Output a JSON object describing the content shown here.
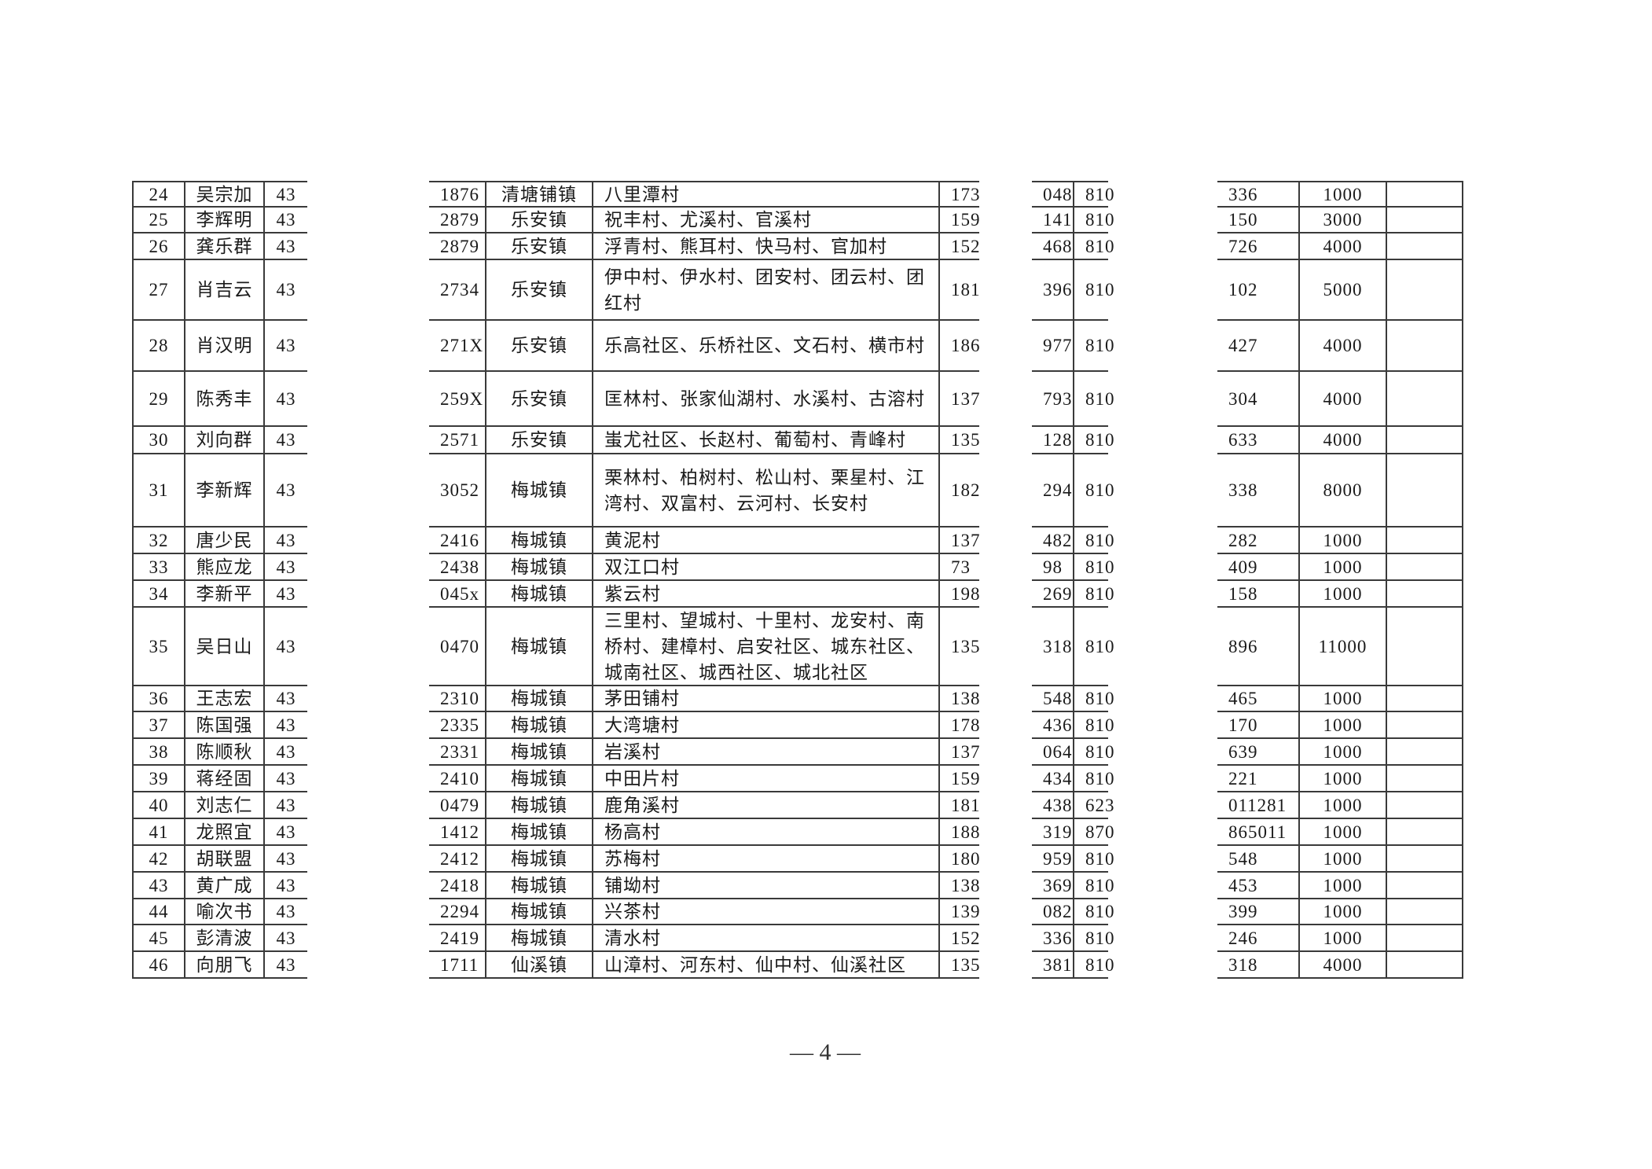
{
  "page_number": "— 4 —",
  "table": {
    "rows": [
      {
        "no": "24",
        "name": "吴宗加",
        "c3": "43",
        "id_tail": "1876",
        "town": "清塘铺镇",
        "villages": "八里潭村",
        "phone": "173",
        "c8": "048",
        "c9": "810",
        "c10": "336",
        "amount": "1000",
        "note": ""
      },
      {
        "no": "25",
        "name": "李辉明",
        "c3": "43",
        "id_tail": "2879",
        "town": "乐安镇",
        "villages": "祝丰村、尤溪村、官溪村",
        "phone": "159",
        "c8": "141",
        "c9": "810",
        "c10": "150",
        "amount": "3000",
        "note": ""
      },
      {
        "no": "26",
        "name": "龚乐群",
        "c3": "43",
        "id_tail": "2879",
        "town": "乐安镇",
        "villages": "浮青村、熊耳村、快马村、官加村",
        "phone": "152",
        "c8": "468",
        "c9": "810",
        "c10": "726",
        "amount": "4000",
        "note": ""
      },
      {
        "no": "27",
        "name": "肖吉云",
        "c3": "43",
        "id_tail": "2734",
        "town": "乐安镇",
        "villages": "伊中村、伊水村、团安村、团云村、团红村",
        "phone": "181",
        "c8": "396",
        "c9": "810",
        "c10": "102",
        "amount": "5000",
        "note": ""
      },
      {
        "no": "28",
        "name": "肖汉明",
        "c3": "43",
        "id_tail": "271X",
        "town": "乐安镇",
        "villages": "乐高社区、乐桥社区、文石村、横市村",
        "phone": "186",
        "c8": "977",
        "c9": "810",
        "c10": "427",
        "amount": "4000",
        "note": ""
      },
      {
        "no": "29",
        "name": "陈秀丰",
        "c3": "43",
        "id_tail": "259X",
        "town": "乐安镇",
        "villages": "匡林村、张家仙湖村、水溪村、古溶村",
        "phone": "137",
        "c8": "793",
        "c9": "810",
        "c10": "304",
        "amount": "4000",
        "note": ""
      },
      {
        "no": "30",
        "name": "刘向群",
        "c3": "43",
        "id_tail": "2571",
        "town": "乐安镇",
        "villages": "蚩尤社区、长赵村、葡萄村、青峰村",
        "phone": "135",
        "c8": "128",
        "c9": "810",
        "c10": "633",
        "amount": "4000",
        "note": ""
      },
      {
        "no": "31",
        "name": "李新辉",
        "c3": "43",
        "id_tail": "3052",
        "town": "梅城镇",
        "villages": "栗林村、柏树村、松山村、栗星村、江湾村、双富村、云河村、长安村",
        "phone": "182",
        "c8": "294",
        "c9": "810",
        "c10": "338",
        "amount": "8000",
        "note": ""
      },
      {
        "no": "32",
        "name": "唐少民",
        "c3": "43",
        "id_tail": "2416",
        "town": "梅城镇",
        "villages": "黄泥村",
        "phone": "137",
        "c8": "482",
        "c9": "810",
        "c10": "282",
        "amount": "1000",
        "note": ""
      },
      {
        "no": "33",
        "name": "熊应龙",
        "c3": "43",
        "id_tail": "2438",
        "town": "梅城镇",
        "villages": "双江口村",
        "phone": "73",
        "c8": "98",
        "c9": "810",
        "c10": "409",
        "amount": "1000",
        "note": ""
      },
      {
        "no": "34",
        "name": "李新平",
        "c3": "43",
        "id_tail": "045x",
        "town": "梅城镇",
        "villages": "紫云村",
        "phone": "198",
        "c8": "269",
        "c9": "810",
        "c10": "158",
        "amount": "1000",
        "note": ""
      },
      {
        "no": "35",
        "name": "吴日山",
        "c3": "43",
        "id_tail": "0470",
        "town": "梅城镇",
        "villages": "三里村、望城村、十里村、龙安村、南桥村、建樟村、启安社区、城东社区、城南社区、城西社区、城北社区",
        "phone": "135",
        "c8": "318",
        "c9": "810",
        "c10": "896",
        "amount": "11000",
        "note": ""
      },
      {
        "no": "36",
        "name": "王志宏",
        "c3": "43",
        "id_tail": "2310",
        "town": "梅城镇",
        "villages": "茅田铺村",
        "phone": "138",
        "c8": "548",
        "c9": "810",
        "c10": "465",
        "amount": "1000",
        "note": ""
      },
      {
        "no": "37",
        "name": "陈国强",
        "c3": "43",
        "id_tail": "2335",
        "town": "梅城镇",
        "villages": "大湾塘村",
        "phone": "178",
        "c8": "436",
        "c9": "810",
        "c10": "170",
        "amount": "1000",
        "note": ""
      },
      {
        "no": "38",
        "name": "陈顺秋",
        "c3": "43",
        "id_tail": "2331",
        "town": "梅城镇",
        "villages": "岩溪村",
        "phone": "137",
        "c8": "064",
        "c9": "810",
        "c10": "639",
        "amount": "1000",
        "note": ""
      },
      {
        "no": "39",
        "name": "蒋经固",
        "c3": "43",
        "id_tail": "2410",
        "town": "梅城镇",
        "villages": "中田片村",
        "phone": "159",
        "c8": "434",
        "c9": "810",
        "c10": "221",
        "amount": "1000",
        "note": ""
      },
      {
        "no": "40",
        "name": "刘志仁",
        "c3": "43",
        "id_tail": "0479",
        "town": "梅城镇",
        "villages": "鹿角溪村",
        "phone": "181",
        "c8": "438",
        "c9": "623",
        "c10": "011281",
        "amount": "1000",
        "note": ""
      },
      {
        "no": "41",
        "name": "龙照宜",
        "c3": "43",
        "id_tail": "1412",
        "town": "梅城镇",
        "villages": "杨高村",
        "phone": "188",
        "c8": "319",
        "c9": "870",
        "c10": "865011",
        "amount": "1000",
        "note": ""
      },
      {
        "no": "42",
        "name": "胡联盟",
        "c3": "43",
        "id_tail": "2412",
        "town": "梅城镇",
        "villages": "苏梅村",
        "phone": "180",
        "c8": "959",
        "c9": "810",
        "c10": "548",
        "amount": "1000",
        "note": ""
      },
      {
        "no": "43",
        "name": "黄广成",
        "c3": "43",
        "id_tail": "2418",
        "town": "梅城镇",
        "villages": "铺坳村",
        "phone": "138",
        "c8": "369",
        "c9": "810",
        "c10": "453",
        "amount": "1000",
        "note": ""
      },
      {
        "no": "44",
        "name": "喻次书",
        "c3": "43",
        "id_tail": "2294",
        "town": "梅城镇",
        "villages": "兴茶村",
        "phone": "139",
        "c8": "082",
        "c9": "810",
        "c10": "399",
        "amount": "1000",
        "note": ""
      },
      {
        "no": "45",
        "name": "彭清波",
        "c3": "43",
        "id_tail": "2419",
        "town": "梅城镇",
        "villages": "清水村",
        "phone": "152",
        "c8": "336",
        "c9": "810",
        "c10": "246",
        "amount": "1000",
        "note": ""
      },
      {
        "no": "46",
        "name": "向朋飞",
        "c3": "43",
        "id_tail": "1711",
        "town": "仙溪镇",
        "villages": "山漳村、河东村、仙中村、仙溪社区",
        "phone": "135",
        "c8": "381",
        "c9": "810",
        "c10": "318",
        "amount": "4000",
        "note": ""
      }
    ]
  }
}
